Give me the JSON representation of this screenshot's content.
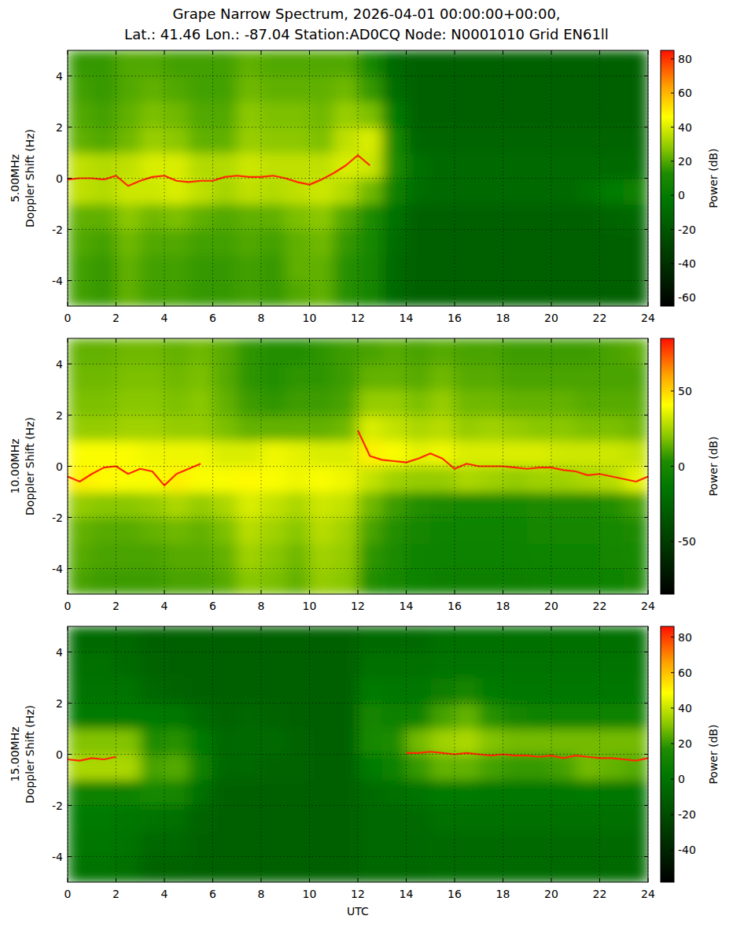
{
  "title": [
    "Grape Narrow Spectrum, 2026-04-01 00:00:00+00:00,",
    "Lat.: 41.46 Lon.: -87.04 Station:AD0CQ Node: N0001010 Grid EN61ll"
  ],
  "chart_data": [
    {
      "type": "heatmap",
      "ylabel": [
        "5.00MHz",
        "Doppler Shift (Hz)"
      ],
      "xlim": [
        0,
        24
      ],
      "xticks": [
        0,
        2,
        4,
        6,
        8,
        10,
        12,
        14,
        16,
        18,
        20,
        22,
        24
      ],
      "ylim": [
        -5,
        5
      ],
      "yticks": [
        -4,
        -2,
        0,
        2,
        4
      ],
      "grid": true,
      "x_edges": [
        0,
        1,
        2,
        3,
        4,
        5,
        6,
        7,
        8,
        9,
        10,
        11,
        12,
        13,
        14,
        15,
        16,
        17,
        18,
        19,
        20,
        21,
        22,
        23,
        24
      ],
      "y_edges": [
        -5,
        -4,
        -3,
        -2,
        -1,
        0,
        1,
        2,
        3,
        4,
        5
      ],
      "cells": [
        [
          18,
          16,
          22,
          18,
          18,
          16,
          16,
          18,
          16,
          20,
          22,
          14,
          8,
          -10,
          -15,
          -15,
          -15,
          -15,
          -15,
          -15,
          -15,
          -15,
          -15,
          -15
        ],
        [
          18,
          16,
          22,
          18,
          18,
          16,
          16,
          18,
          16,
          22,
          22,
          14,
          8,
          -10,
          -15,
          -15,
          -15,
          -15,
          -15,
          -15,
          -15,
          -15,
          -15,
          -15
        ],
        [
          20,
          18,
          24,
          20,
          20,
          18,
          18,
          20,
          18,
          22,
          24,
          16,
          10,
          -8,
          -15,
          -15,
          -15,
          -15,
          -15,
          -15,
          -15,
          -15,
          -15,
          -15
        ],
        [
          22,
          22,
          28,
          24,
          26,
          22,
          20,
          22,
          22,
          26,
          28,
          20,
          12,
          -5,
          -14,
          -14,
          -14,
          -14,
          -14,
          -14,
          -14,
          -14,
          -12,
          -10
        ],
        [
          36,
          34,
          38,
          38,
          40,
          36,
          32,
          36,
          34,
          36,
          38,
          34,
          24,
          5,
          -8,
          -10,
          -10,
          -10,
          -10,
          -10,
          -10,
          -6,
          0,
          4
        ],
        [
          36,
          34,
          36,
          40,
          40,
          34,
          34,
          38,
          36,
          36,
          36,
          40,
          38,
          12,
          -6,
          -10,
          -10,
          -10,
          -10,
          -10,
          -10,
          -10,
          -10,
          -10
        ],
        [
          22,
          20,
          24,
          30,
          28,
          22,
          22,
          30,
          28,
          28,
          26,
          36,
          40,
          10,
          -12,
          -12,
          -12,
          -12,
          -12,
          -12,
          -12,
          -12,
          -12,
          -12
        ],
        [
          20,
          18,
          22,
          26,
          24,
          20,
          20,
          28,
          26,
          26,
          24,
          30,
          26,
          0,
          -15,
          -15,
          -15,
          -15,
          -15,
          -15,
          -15,
          -15,
          -15,
          -15
        ],
        [
          18,
          16,
          20,
          22,
          20,
          18,
          18,
          24,
          22,
          22,
          22,
          24,
          16,
          -8,
          -15,
          -15,
          -15,
          -15,
          -15,
          -15,
          -15,
          -15,
          -15,
          -15
        ],
        [
          16,
          16,
          20,
          20,
          18,
          18,
          18,
          22,
          20,
          20,
          20,
          20,
          10,
          -10,
          -15,
          -15,
          -15,
          -15,
          -15,
          -15,
          -15,
          -15,
          -15,
          -15
        ]
      ],
      "colorbar": {
        "label": "Power (dB)",
        "range": [
          -65,
          85
        ],
        "ticks": [
          -60,
          -40,
          -20,
          0,
          20,
          40,
          60,
          80
        ]
      },
      "series": [
        {
          "color": "#ff2a00",
          "x": [
            0,
            0.5,
            1,
            1.5,
            2,
            2.5,
            3,
            3.5,
            4,
            4.5,
            5,
            5.5,
            6,
            6.5,
            7,
            7.5,
            8,
            8.5,
            9,
            9.5,
            10,
            10.5,
            11,
            11.5,
            12,
            12.5
          ],
          "values": [
            -0.05,
            0,
            0,
            -0.05,
            0.1,
            -0.3,
            -0.1,
            0.05,
            0.1,
            -0.1,
            -0.15,
            -0.1,
            -0.1,
            0.05,
            0.1,
            0.05,
            0.05,
            0.1,
            0,
            -0.15,
            -0.25,
            -0.05,
            0.2,
            0.5,
            0.9,
            0.5
          ]
        }
      ]
    },
    {
      "type": "heatmap",
      "ylabel": [
        "10.00MHz",
        "Doppler Shift (Hz)"
      ],
      "xlim": [
        0,
        24
      ],
      "xticks": [
        0,
        2,
        4,
        6,
        8,
        10,
        12,
        14,
        16,
        18,
        20,
        22,
        24
      ],
      "ylim": [
        -5,
        5
      ],
      "yticks": [
        -4,
        -2,
        0,
        2,
        4
      ],
      "grid": true,
      "x_edges": [
        0,
        1,
        2,
        3,
        4,
        5,
        6,
        7,
        8,
        9,
        10,
        11,
        12,
        13,
        14,
        15,
        16,
        17,
        18,
        19,
        20,
        21,
        22,
        23,
        24
      ],
      "y_edges": [
        -5,
        -4,
        -3,
        -2,
        -1,
        0,
        1,
        2,
        3,
        4,
        5
      ],
      "cells": [
        [
          10,
          8,
          8,
          8,
          10,
          10,
          12,
          20,
          18,
          14,
          22,
          20,
          4,
          0,
          -5,
          -8,
          -8,
          -8,
          -8,
          -6,
          -6,
          -6,
          -4,
          -2
        ],
        [
          12,
          10,
          10,
          10,
          12,
          12,
          14,
          24,
          20,
          16,
          24,
          22,
          6,
          2,
          -4,
          -6,
          -6,
          -6,
          -6,
          -4,
          -4,
          -4,
          -2,
          0
        ],
        [
          14,
          12,
          12,
          14,
          16,
          14,
          18,
          28,
          24,
          20,
          28,
          24,
          10,
          4,
          -2,
          -4,
          -4,
          -4,
          -4,
          -2,
          -2,
          -2,
          0,
          2
        ],
        [
          22,
          20,
          20,
          22,
          26,
          22,
          26,
          34,
          30,
          26,
          32,
          30,
          16,
          8,
          4,
          2,
          0,
          0,
          0,
          2,
          2,
          2,
          4,
          8
        ],
        [
          44,
          42,
          40,
          40,
          44,
          40,
          40,
          42,
          40,
          38,
          40,
          38,
          30,
          24,
          22,
          22,
          26,
          24,
          22,
          24,
          24,
          26,
          28,
          36
        ],
        [
          40,
          40,
          40,
          38,
          38,
          38,
          34,
          34,
          38,
          36,
          34,
          34,
          44,
          40,
          36,
          38,
          34,
          34,
          34,
          34,
          32,
          32,
          32,
          30
        ],
        [
          22,
          22,
          24,
          24,
          22,
          22,
          18,
          14,
          14,
          14,
          14,
          16,
          34,
          30,
          26,
          28,
          22,
          24,
          22,
          20,
          20,
          18,
          18,
          16
        ],
        [
          18,
          18,
          20,
          20,
          18,
          20,
          14,
          8,
          6,
          8,
          8,
          10,
          22,
          22,
          18,
          22,
          16,
          16,
          14,
          14,
          14,
          12,
          12,
          12
        ],
        [
          16,
          16,
          18,
          18,
          16,
          18,
          12,
          6,
          4,
          6,
          6,
          8,
          14,
          14,
          12,
          16,
          12,
          12,
          10,
          10,
          10,
          10,
          10,
          10
        ],
        [
          14,
          14,
          16,
          16,
          14,
          16,
          12,
          6,
          4,
          4,
          6,
          8,
          10,
          12,
          10,
          12,
          10,
          10,
          8,
          8,
          8,
          8,
          10,
          12
        ]
      ],
      "colorbar": {
        "label": "Power (dB)",
        "range": [
          -85,
          85
        ],
        "ticks": [
          -50,
          0,
          50
        ]
      },
      "series": [
        {
          "color": "#ff2a00",
          "x": [
            0,
            0.5,
            1,
            1.5,
            2,
            2.5,
            3,
            3.5,
            4,
            4.5,
            5,
            5.5,
            6,
            6.5,
            7,
            7.5,
            8,
            8.5,
            9,
            9.5,
            10,
            10.5,
            11,
            11.5,
            12,
            12.5,
            13,
            13.5,
            14,
            14.5,
            15,
            15.5,
            16,
            16.5,
            17,
            17.5,
            18,
            18.5,
            19,
            19.5,
            20,
            20.5,
            21,
            21.5,
            22,
            22.5,
            23,
            23.5,
            24
          ],
          "values": [
            -0.4,
            -0.6,
            -0.3,
            -0.05,
            0,
            -0.3,
            -0.1,
            -0.2,
            -0.75,
            -0.3,
            -0.1,
            0.1,
            null,
            null,
            null,
            null,
            null,
            null,
            null,
            null,
            null,
            null,
            null,
            null,
            1.4,
            0.4,
            0.25,
            0.2,
            0.15,
            0.3,
            0.5,
            0.3,
            -0.1,
            0.1,
            0,
            0,
            0,
            -0.05,
            -0.1,
            -0.05,
            -0.05,
            -0.15,
            -0.2,
            -0.35,
            -0.3,
            -0.4,
            -0.5,
            -0.6,
            -0.4
          ]
        }
      ]
    },
    {
      "type": "heatmap",
      "ylabel": [
        "15.00MHz",
        "Doppler Shift (Hz)"
      ],
      "xlabel": "UTC",
      "xlim": [
        0,
        24
      ],
      "xticks": [
        0,
        2,
        4,
        6,
        8,
        10,
        12,
        14,
        16,
        18,
        20,
        22,
        24
      ],
      "ylim": [
        -5,
        5
      ],
      "yticks": [
        -4,
        -2,
        0,
        2,
        4
      ],
      "grid": true,
      "x_edges": [
        0,
        1,
        2,
        3,
        4,
        5,
        6,
        7,
        8,
        9,
        10,
        11,
        12,
        13,
        14,
        15,
        16,
        17,
        18,
        19,
        20,
        21,
        22,
        23,
        24
      ],
      "y_edges": [
        -5,
        -4,
        -3,
        -2,
        -1,
        0,
        1,
        2,
        3,
        4,
        5
      ],
      "cells": [
        [
          0,
          0,
          -2,
          -8,
          -8,
          -10,
          -10,
          -10,
          -10,
          -10,
          -10,
          -10,
          -6,
          -6,
          -6,
          -4,
          -4,
          -4,
          -4,
          -4,
          -4,
          -4,
          -4,
          -4
        ],
        [
          2,
          2,
          0,
          -6,
          -6,
          -10,
          -10,
          -10,
          -10,
          -10,
          -10,
          -10,
          -6,
          -6,
          -6,
          -4,
          -4,
          -4,
          -4,
          -4,
          -4,
          -4,
          -4,
          -4
        ],
        [
          4,
          4,
          2,
          0,
          -2,
          -8,
          -10,
          -10,
          -10,
          -10,
          -10,
          -10,
          -6,
          -6,
          -4,
          -2,
          -2,
          -2,
          -2,
          -2,
          -2,
          -2,
          -2,
          -2
        ],
        [
          10,
          10,
          10,
          14,
          12,
          -2,
          -10,
          -10,
          -10,
          -10,
          -10,
          -10,
          -4,
          -2,
          0,
          4,
          4,
          2,
          2,
          2,
          2,
          4,
          2,
          2
        ],
        [
          36,
          36,
          36,
          22,
          24,
          8,
          -6,
          -6,
          -8,
          -8,
          -10,
          -10,
          4,
          10,
          20,
          26,
          26,
          22,
          20,
          20,
          22,
          28,
          26,
          24
        ],
        [
          30,
          30,
          30,
          16,
          18,
          4,
          -6,
          -4,
          -4,
          -8,
          -10,
          -10,
          14,
          16,
          28,
          34,
          36,
          30,
          28,
          28,
          28,
          28,
          28,
          28
        ],
        [
          4,
          4,
          4,
          4,
          2,
          -4,
          -8,
          -6,
          -8,
          -10,
          -10,
          -10,
          12,
          8,
          10,
          22,
          26,
          18,
          12,
          10,
          10,
          10,
          10,
          10
        ],
        [
          0,
          0,
          0,
          -6,
          -8,
          -10,
          -10,
          -10,
          -10,
          -10,
          -10,
          -10,
          4,
          2,
          2,
          6,
          12,
          4,
          2,
          2,
          2,
          2,
          2,
          2
        ],
        [
          -2,
          -2,
          -4,
          -8,
          -10,
          -10,
          -10,
          -10,
          -10,
          -10,
          -10,
          -10,
          -2,
          -2,
          -2,
          0,
          0,
          0,
          0,
          0,
          0,
          0,
          0,
          0
        ],
        [
          -4,
          -4,
          -6,
          -10,
          -10,
          -10,
          -10,
          -10,
          -10,
          -10,
          -10,
          -10,
          -4,
          -4,
          -4,
          -2,
          -2,
          -2,
          -2,
          -2,
          -2,
          -2,
          -2,
          -2
        ]
      ],
      "colorbar": {
        "label": "Power (dB)",
        "range": [
          -58,
          86
        ],
        "ticks": [
          -40,
          -20,
          0,
          20,
          40,
          60,
          80
        ]
      },
      "series": [
        {
          "color": "#ff2a00",
          "x": [
            0,
            0.5,
            1,
            1.5,
            2,
            2.5,
            3,
            3.5,
            4,
            4.5,
            5,
            5.5,
            6,
            6.5,
            7,
            7.5,
            8,
            8.5,
            9,
            9.5,
            10,
            10.5,
            11,
            11.5,
            12,
            12.5,
            13,
            13.5,
            14,
            14.5,
            15,
            15.5,
            16,
            16.5,
            17,
            17.5,
            18,
            18.5,
            19,
            19.5,
            20,
            20.5,
            21,
            21.5,
            22,
            22.5,
            23,
            23.5,
            24
          ],
          "values": [
            -0.2,
            -0.25,
            -0.15,
            -0.2,
            -0.1,
            null,
            null,
            null,
            null,
            null,
            null,
            null,
            null,
            null,
            null,
            null,
            null,
            null,
            null,
            null,
            null,
            null,
            null,
            null,
            null,
            null,
            null,
            null,
            0.05,
            0.05,
            0.1,
            0.05,
            0,
            0.05,
            0,
            -0.05,
            0,
            -0.05,
            -0.05,
            -0.1,
            -0.05,
            -0.15,
            -0.05,
            -0.1,
            -0.15,
            -0.15,
            -0.2,
            -0.25,
            -0.15
          ]
        }
      ]
    }
  ]
}
